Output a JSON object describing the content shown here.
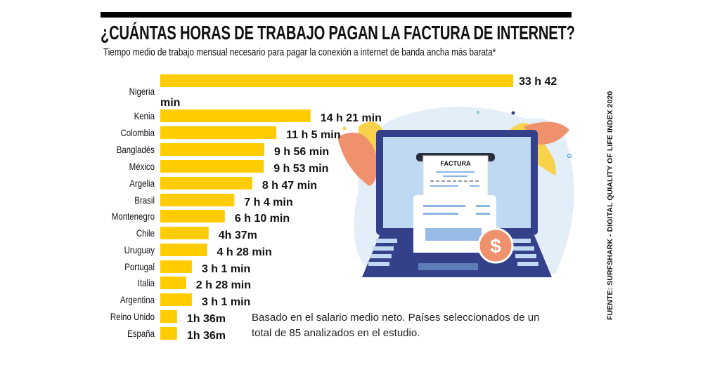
{
  "title": "¿CUÁNTAS HORAS DE TRABAJO PAGAN LA FACTURA DE INTERNET?",
  "subtitle": "Tiempo medio de trabajo mensual necesario para pagar la conexión a internet de banda ancha más barata*",
  "note": "Basado en el salario medio neto. Países seleccionados de un total de 85 analizados en el estudio.",
  "source": "FUENTE: SURFSHARK - DIGITAL QUIALITY OF LIFE INDEX 2020",
  "illustration": {
    "invoice_label": "FACTURA",
    "currency_symbol": "$"
  },
  "colors": {
    "bar": "#FFCC00",
    "laptop": "#34408A",
    "screen": "#BFD9F2",
    "leaf_orange": "#F0916E",
    "leaf_yellow": "#F8D24A",
    "coin": "#F0916E"
  },
  "chart_data": {
    "type": "bar",
    "orientation": "horizontal",
    "categories": [
      "Nigeria",
      "Kenia",
      "Colombia",
      "Bangladés",
      "México",
      "Argelia",
      "Brasil",
      "Montenegro",
      "Chile",
      "Uruguay",
      "Portugal",
      "Italia",
      "Argentina",
      "Reino Unido",
      "España"
    ],
    "values_hours": [
      33.7,
      14.35,
      11.083,
      9.933,
      9.883,
      8.783,
      7.067,
      6.167,
      4.617,
      4.467,
      3.017,
      2.467,
      3.017,
      1.6,
      1.6
    ],
    "data_labels": [
      "33 h 42 min",
      "14 h 21 min",
      "11 h 5 min",
      "9 h 56 min",
      "9 h 53 min",
      "8 h 47 min",
      "7 h  4 min",
      "6 h 10 min",
      "4h 37m",
      "4 h 28 min",
      "3 h 1 min",
      "2 h 28 min",
      "3 h 1 min",
      "1h 36m",
      "1h 36m"
    ],
    "xlabel": "",
    "ylabel": "",
    "grid": false,
    "legend": "none"
  }
}
